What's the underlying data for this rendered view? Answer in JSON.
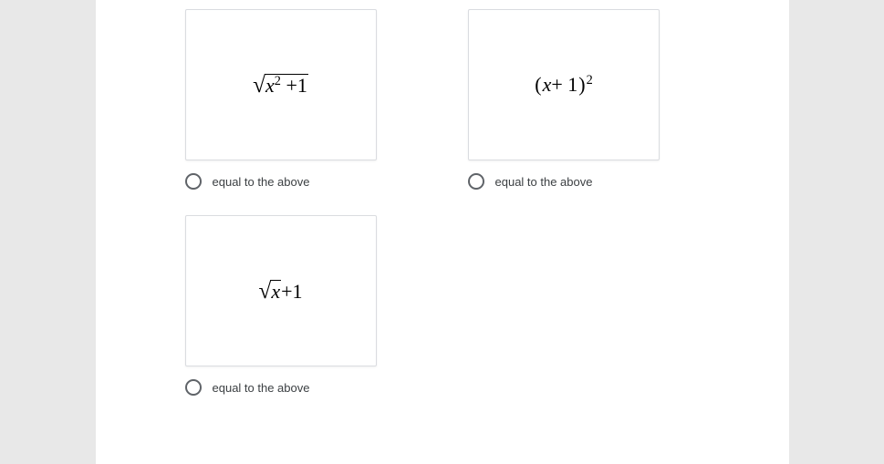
{
  "options": {
    "a": {
      "label": "equal to the above"
    },
    "b": {
      "label": "equal to the above"
    },
    "c": {
      "label": "equal to the above"
    }
  },
  "math": {
    "a": {
      "variable": "x",
      "exp_inside": "2",
      "plus": " +1"
    },
    "b": {
      "lparen": "(",
      "variable": "x",
      "plus": " + 1",
      "rparen": ")",
      "exp": "2"
    },
    "c": {
      "variable": "x",
      "plus": " +1"
    }
  },
  "style": {
    "card_bg": "#ffffff",
    "card_border": "#dadce0",
    "radio_border": "#5f6368",
    "label_color": "#3c4043",
    "page_bg": "#ffffff",
    "body_bg": "#e8e8e8"
  }
}
